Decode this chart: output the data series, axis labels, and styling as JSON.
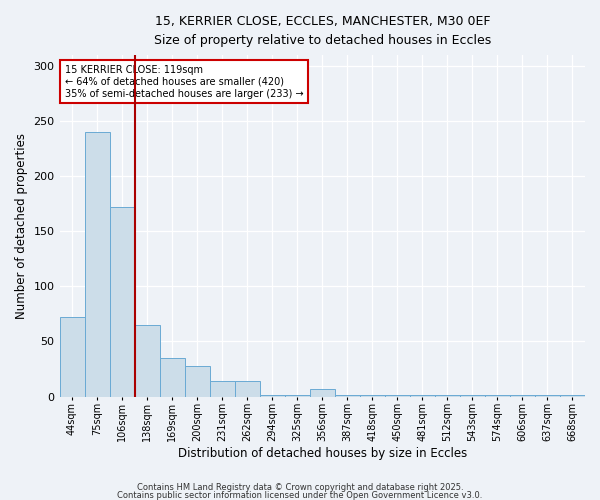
{
  "title_line1": "15, KERRIER CLOSE, ECCLES, MANCHESTER, M30 0EF",
  "title_line2": "Size of property relative to detached houses in Eccles",
  "xlabel": "Distribution of detached houses by size in Eccles",
  "ylabel": "Number of detached properties",
  "categories": [
    "44sqm",
    "75sqm",
    "106sqm",
    "138sqm",
    "169sqm",
    "200sqm",
    "231sqm",
    "262sqm",
    "294sqm",
    "325sqm",
    "356sqm",
    "387sqm",
    "418sqm",
    "450sqm",
    "481sqm",
    "512sqm",
    "543sqm",
    "574sqm",
    "606sqm",
    "637sqm",
    "668sqm"
  ],
  "values": [
    72,
    240,
    172,
    65,
    35,
    28,
    14,
    14,
    1,
    1,
    7,
    1,
    1,
    1,
    1,
    1,
    1,
    1,
    1,
    1,
    1
  ],
  "bar_color": "#ccdde9",
  "bar_edge_color": "#6aaad4",
  "annotation_text": "15 KERRIER CLOSE: 119sqm\n← 64% of detached houses are smaller (420)\n35% of semi-detached houses are larger (233) →",
  "annotation_box_color": "#ffffff",
  "annotation_box_edge": "#cc0000",
  "vline_color": "#aa0000",
  "vline_x_index": 2.5,
  "ylim": [
    0,
    310
  ],
  "yticks": [
    0,
    50,
    100,
    150,
    200,
    250,
    300
  ],
  "background_color": "#eef2f7",
  "footer_line1": "Contains HM Land Registry data © Crown copyright and database right 2025.",
  "footer_line2": "Contains public sector information licensed under the Open Government Licence v3.0."
}
